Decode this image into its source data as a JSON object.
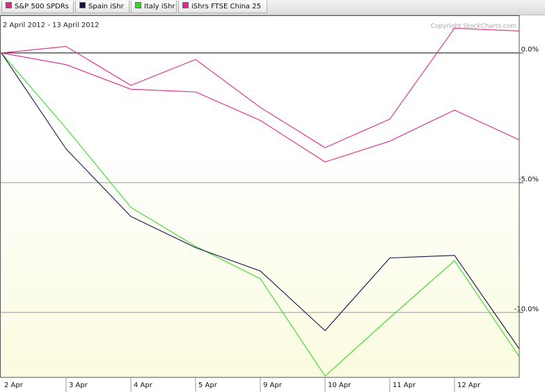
{
  "legend": [
    {
      "label": "S&P 500 SPDRs",
      "color": "#e0288c"
    },
    {
      "label": "Spain iShr",
      "color": "#141448"
    },
    {
      "label": "Italy iShr",
      "color": "#33dd22"
    },
    {
      "label": "iShrs FTSE China 25",
      "color": "#e0288c"
    }
  ],
  "date_range": "2 April 2012 - 13 April 2012",
  "copyright": "Copyright StockCharts.com",
  "chart_data": {
    "type": "line",
    "categories": [
      "2 Apr",
      "3 Apr",
      "4 Apr",
      "5 Apr",
      "9 Apr",
      "10 Apr",
      "11 Apr",
      "12 Apr",
      "13 Apr"
    ],
    "y_ticks": [
      0,
      -5,
      -10
    ],
    "y_tick_labels": [
      "0.0%",
      "-5.0%",
      "-10.0%"
    ],
    "ylim": [
      -12.5,
      1.45
    ],
    "grid": true,
    "legend_position": "top",
    "series": [
      {
        "name": "S&P 500 SPDRs",
        "color": "#e0288c",
        "values": [
          0,
          -0.45,
          -1.4,
          -1.5,
          -2.6,
          -4.2,
          -3.4,
          -2.2,
          -3.35
        ]
      },
      {
        "name": "Spain iShr",
        "color": "#141448",
        "values": [
          0,
          -3.7,
          -6.3,
          -7.5,
          -8.4,
          -10.7,
          -7.9,
          -7.8,
          -11.4
        ]
      },
      {
        "name": "Italy iShr",
        "color": "#33dd22",
        "values": [
          0,
          -2.9,
          -5.95,
          -7.45,
          -8.7,
          -12.45,
          -10.2,
          -8.0,
          -11.7
        ]
      },
      {
        "name": "iShrs FTSE China 25",
        "color": "#e0288c",
        "values": [
          0,
          0.25,
          -1.25,
          -0.25,
          -2.1,
          -3.65,
          -2.55,
          0.95,
          0.85
        ]
      }
    ]
  }
}
